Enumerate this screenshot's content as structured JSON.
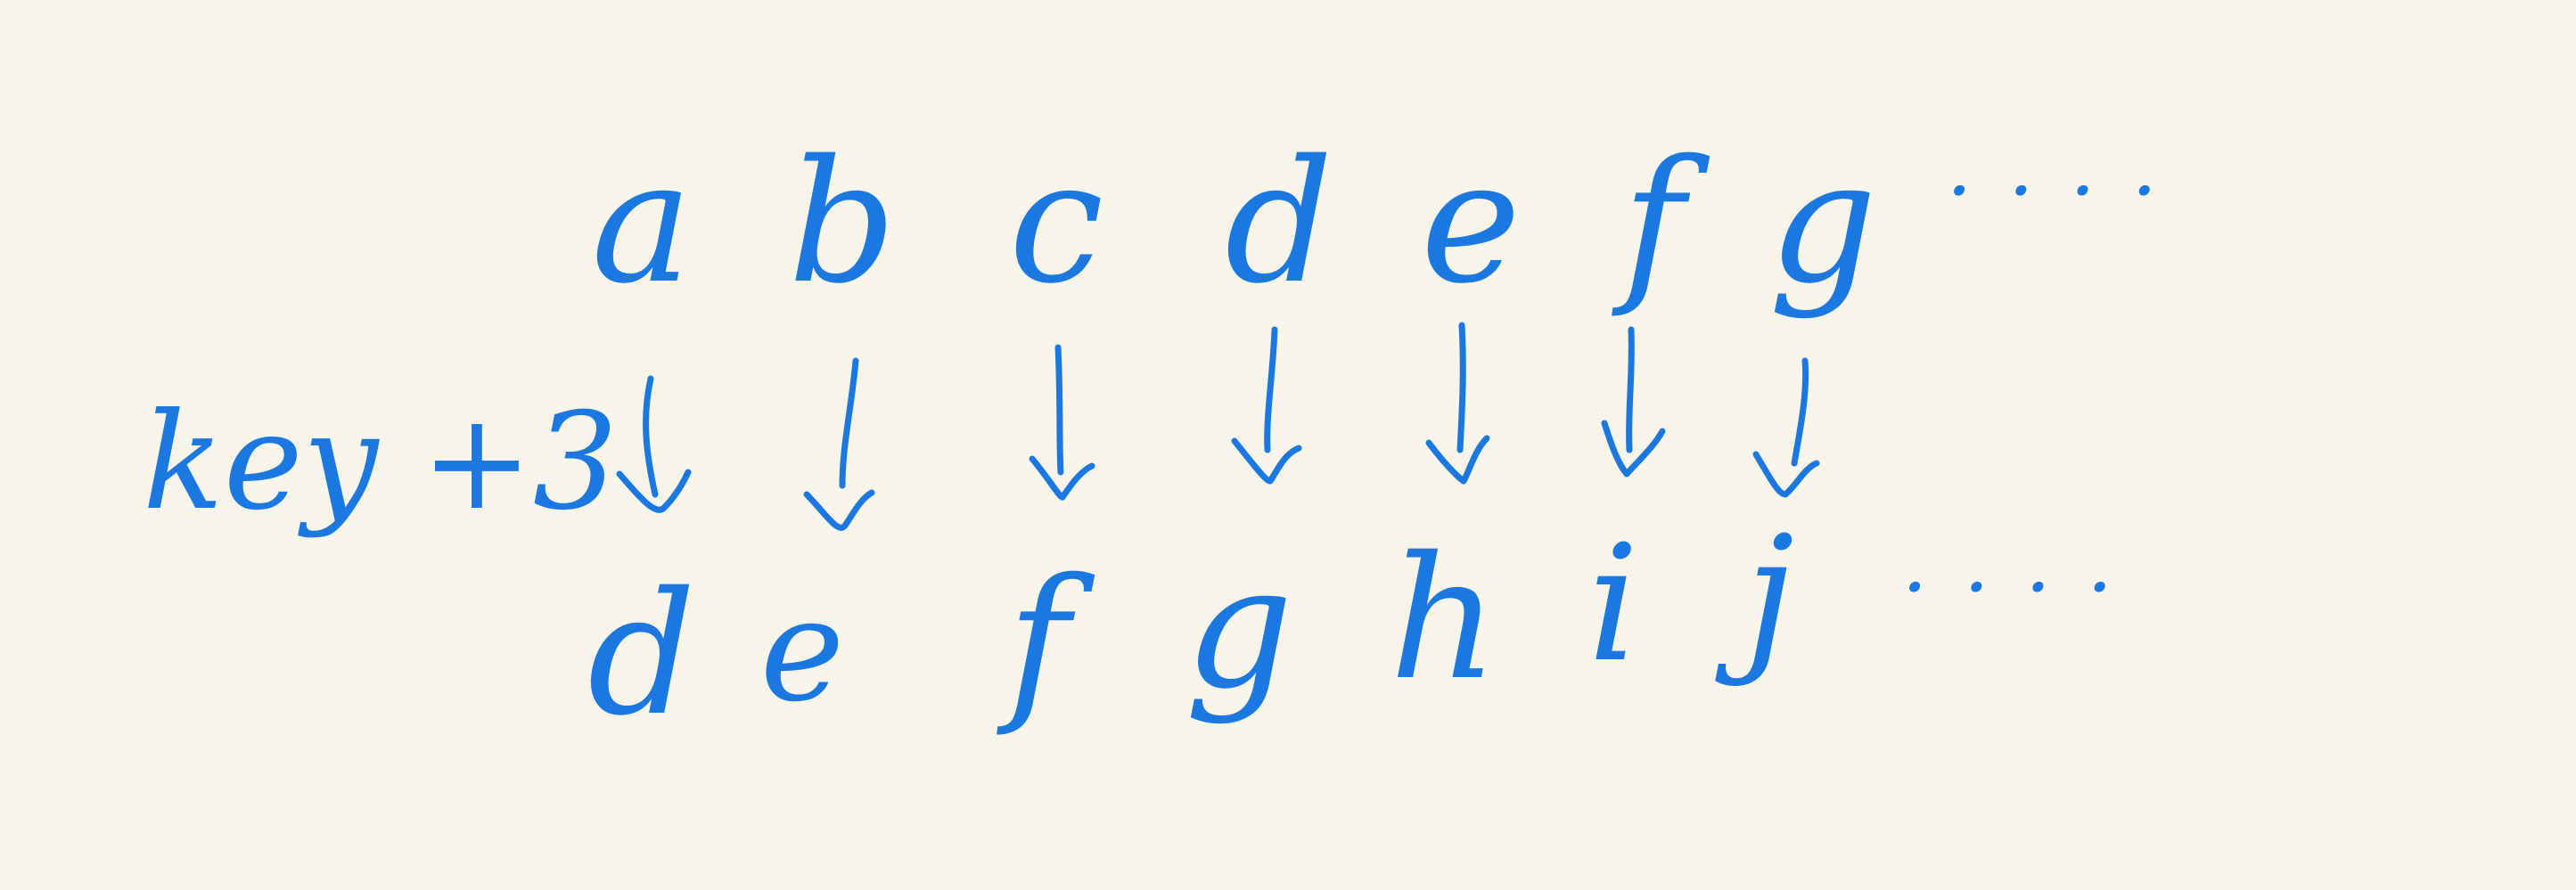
{
  "plaintext_row": [
    "a",
    "b",
    "c",
    "d",
    "e",
    "f",
    "g"
  ],
  "plaintext_ellipsis": "· · · ·",
  "shift_label": "key +3",
  "ciphertext_row": [
    "d",
    "e",
    "f",
    "g",
    "h",
    "i",
    "j"
  ],
  "ciphertext_ellipsis": "· · · ·",
  "ink_color": "#1a78e0",
  "background_color": "#f7f5ea",
  "arrow_icon": "down-arrow-icon"
}
